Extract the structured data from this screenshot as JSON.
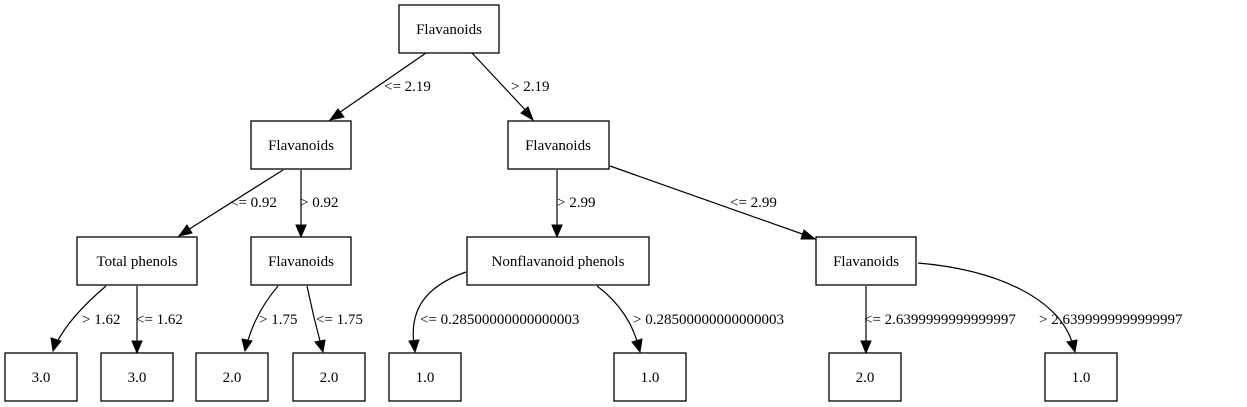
{
  "tree": {
    "nodes": {
      "n0": "Flavanoids",
      "n1": "Flavanoids",
      "n2": "Flavanoids",
      "n3": "Total phenols",
      "n4": "Flavanoids",
      "n5": "Nonflavanoid phenols",
      "n6": "Flavanoids",
      "l1": "3.0",
      "l2": "3.0",
      "l3": "2.0",
      "l4": "2.0",
      "l5": "1.0",
      "l6": "1.0",
      "l7": "2.0",
      "l8": "1.0"
    },
    "edges": {
      "e_n0_n1": "<= 2.19",
      "e_n0_n2": "> 2.19",
      "e_n1_n3": "<= 0.92",
      "e_n1_n4": "> 0.92",
      "e_n2_n5": "> 2.99",
      "e_n2_n6": "<= 2.99",
      "e_n3_l1": "> 1.62",
      "e_n3_l2": "<= 1.62",
      "e_n4_l3": "> 1.75",
      "e_n4_l4": "<= 1.75",
      "e_n5_l5": "<= 0.28500000000000003",
      "e_n5_l6": "> 0.28500000000000003",
      "e_n6_l7": "<= 2.6399999999999997",
      "e_n6_l8": "> 2.6399999999999997"
    }
  }
}
